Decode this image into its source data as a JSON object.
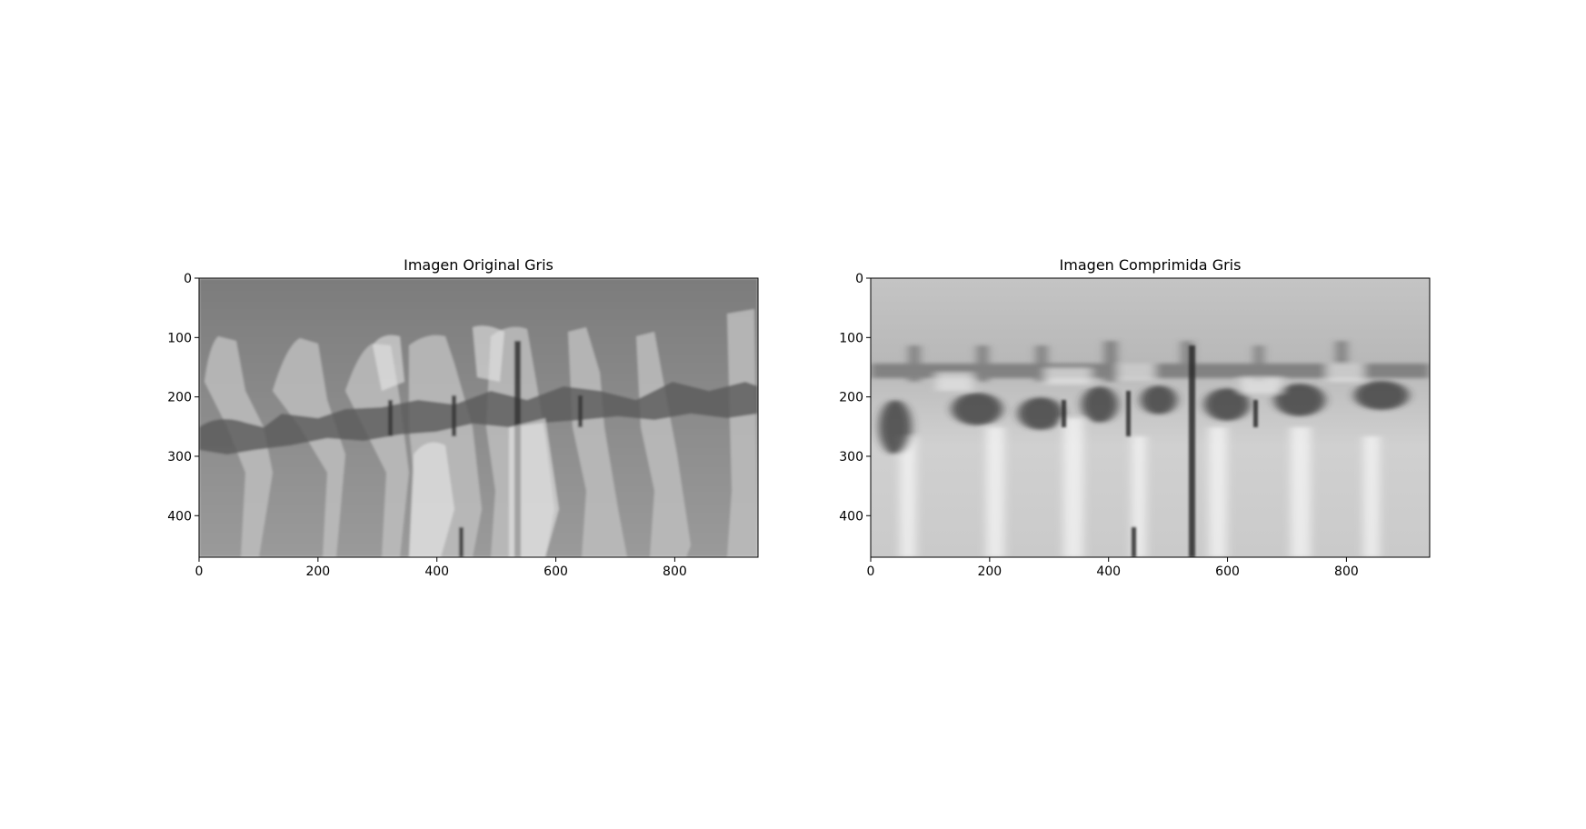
{
  "figure": {
    "panels": [
      {
        "title": "Imagen Original Gris",
        "image_description_icon": "grayscale-photo",
        "x_ticks": [
          "0",
          "200",
          "400",
          "600",
          "800"
        ],
        "y_ticks": [
          "0",
          "100",
          "200",
          "300",
          "400"
        ],
        "x_range": [
          0,
          940
        ],
        "y_range": [
          0,
          470
        ]
      },
      {
        "title": "Imagen Comprimida Gris",
        "image_description_icon": "grayscale-compressed-photo",
        "x_ticks": [
          "0",
          "200",
          "400",
          "600",
          "800"
        ],
        "y_ticks": [
          "0",
          "100",
          "200",
          "300",
          "400"
        ],
        "x_range": [
          0,
          940
        ],
        "y_range": [
          0,
          470
        ]
      }
    ]
  }
}
